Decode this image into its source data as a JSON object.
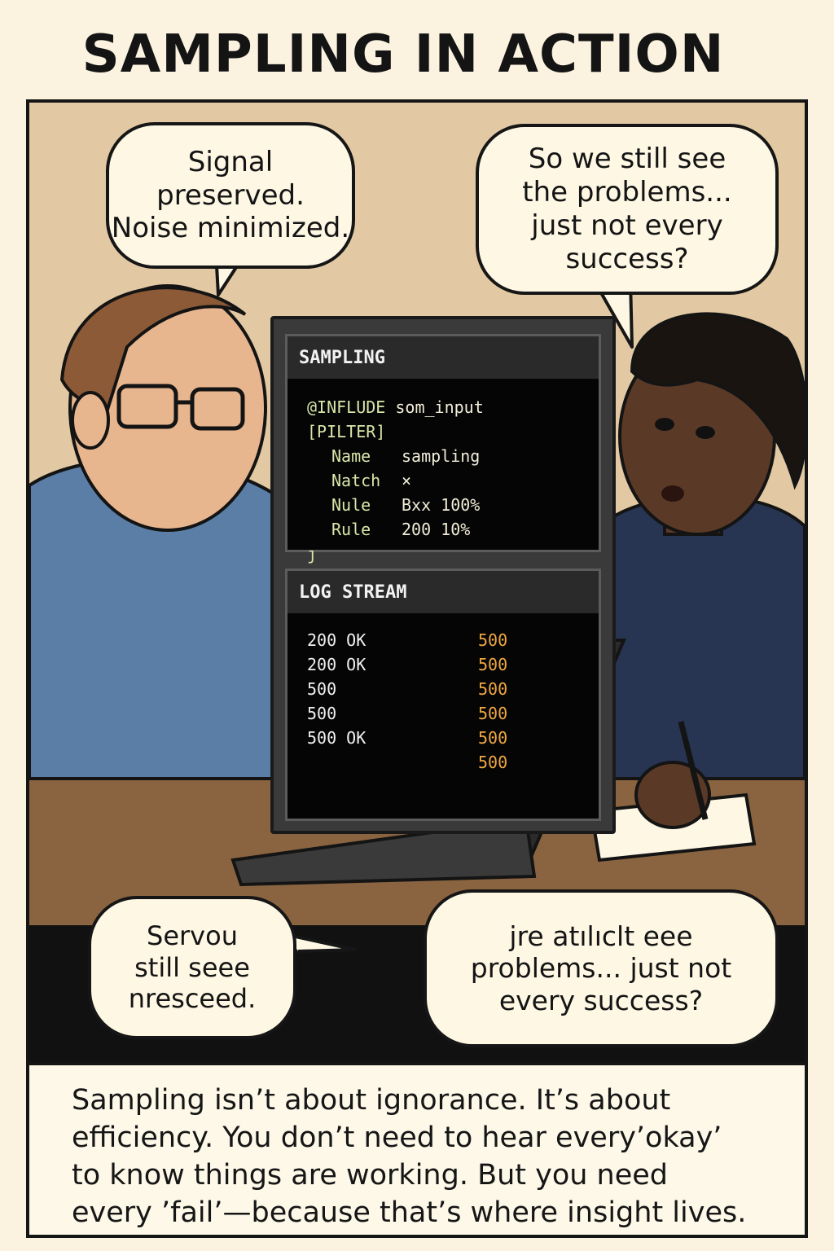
{
  "title": "SAMPLING IN ACTION",
  "bubbles": {
    "man_top": "Signal\npreserved.\nNoise minimized.",
    "woman_top": "So we still see\nthe problems...\njust not every\nsuccess?",
    "man_bottom": "Servou\nstill seee\nnresceed.",
    "woman_bottom": "jre atılıclt eee\nproblems... just not\nevery success?"
  },
  "screen": {
    "config_header": "SAMPLING",
    "config_lines": [
      {
        "key": "@INFLUDE",
        "val": "som_input",
        "indent": false
      },
      {
        "key": "[PILTER]",
        "val": "",
        "indent": false
      },
      {
        "key": "Name",
        "val": "sampling",
        "indent": true
      },
      {
        "key": "Natch",
        "val": "×",
        "indent": true
      },
      {
        "key": "Nule",
        "val": "Bxx  100%",
        "indent": true
      },
      {
        "key": "Rule",
        "val": "200  10%",
        "indent": true
      },
      {
        "key": "ȷ",
        "val": "",
        "indent": false
      }
    ],
    "log_header": "LOG STREAM",
    "log_left": [
      "200  OK",
      "200  OK",
      "500",
      "500",
      "500  OK"
    ],
    "log_right": [
      "500",
      "500",
      "500",
      "500",
      "500",
      "500"
    ]
  },
  "caption": "Sampling isn’t about ignorance. It’s about\nefficiency. You don’t need to hear every’okay’\nto know things are working. But you need\nevery ’fail’—because that’s where insight lives.",
  "colors": {
    "wall": "#e3c9a3",
    "desk": "#8a6440",
    "man_shirt": "#5a7ea6",
    "woman_shirt": "#283552",
    "log_error": "#f0a844"
  }
}
